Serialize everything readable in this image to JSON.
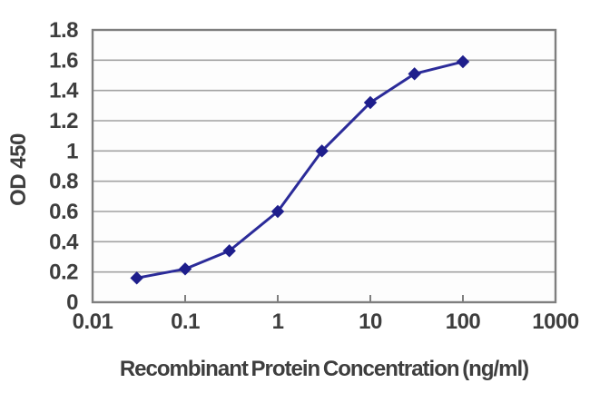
{
  "chart_data": {
    "type": "line",
    "title": "",
    "xlabel": "Recombinant Protein Concentration (ng/ml)",
    "ylabel": "OD 450",
    "x_scale": "log",
    "xlim": [
      0.01,
      1000
    ],
    "ylim": [
      0,
      1.8
    ],
    "x_ticks": [
      0.01,
      0.1,
      1,
      10,
      100,
      1000
    ],
    "x_tick_labels": [
      "0.01",
      "0.1",
      "1",
      "10",
      "100",
      "1000"
    ],
    "y_ticks": [
      0,
      0.2,
      0.4,
      0.6,
      0.8,
      1,
      1.2,
      1.4,
      1.6,
      1.8
    ],
    "y_tick_labels": [
      "0",
      "0.2",
      "0.4",
      "0.6",
      "0.8",
      "1",
      "1.2",
      "1.4",
      "1.6",
      "1.8"
    ],
    "grid": "horizontal",
    "legend": "none",
    "series": [
      {
        "x": [
          0.03,
          0.1,
          0.3,
          1,
          3,
          10,
          30,
          100
        ],
        "y": [
          0.16,
          0.22,
          0.34,
          0.6,
          1.0,
          1.32,
          1.51,
          1.59
        ],
        "marker": "diamond"
      }
    ],
    "colors": {
      "series_line": "#2b2b99",
      "marker_fill": "#1e1e8c",
      "gridline": "#a2a2a2",
      "border": "#7f7f7f",
      "text": "#3e3e3e",
      "plot_background": "#fdfdfd",
      "page_background": "#ffffff"
    }
  }
}
